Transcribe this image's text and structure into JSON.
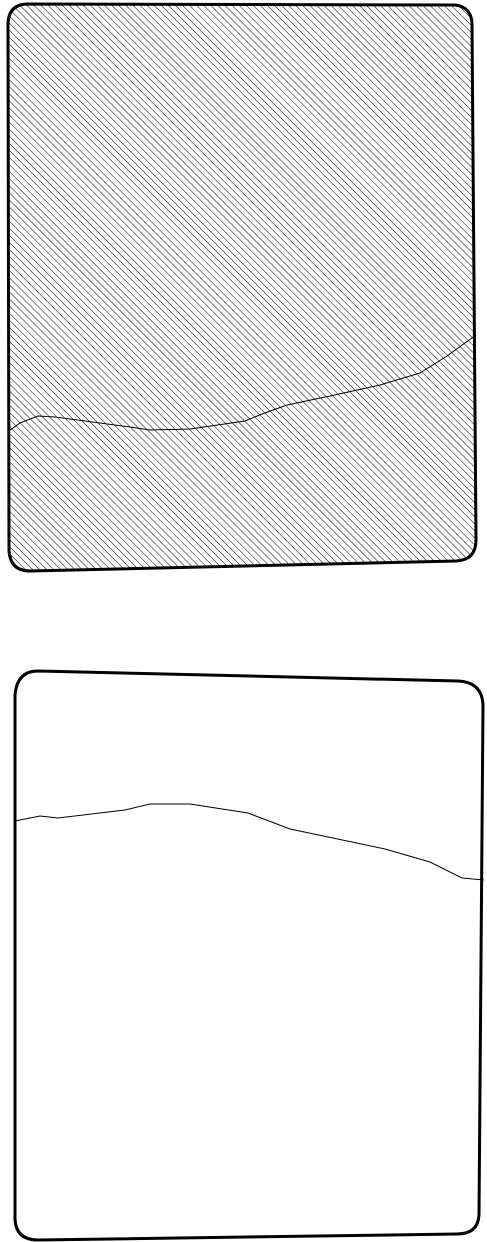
{
  "colors": {
    "background": "#ffffff",
    "outline": "#000000",
    "hatch": "#000000",
    "empty_fill": "#ffffff"
  },
  "panels": [
    {
      "name": "upper-panel",
      "pattern": "diagonal-hatch"
    },
    {
      "name": "lower-panel",
      "pattern": "none"
    }
  ]
}
